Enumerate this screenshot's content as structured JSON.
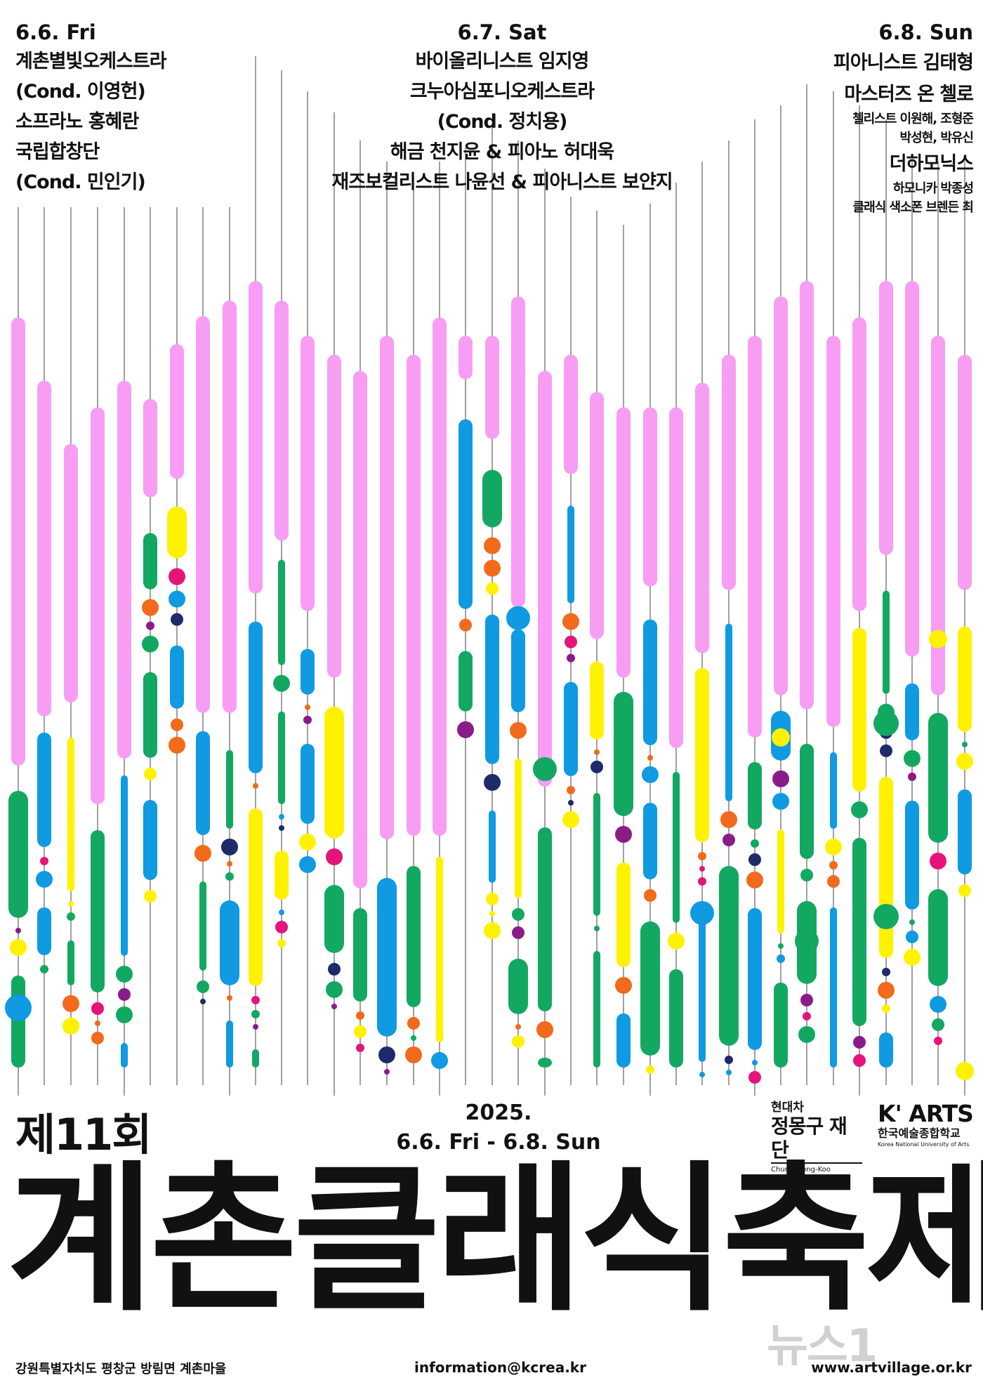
{
  "schedule": {
    "fri": {
      "date": "6.6. Fri",
      "lines": [
        "계촌별빛오케스트라",
        "(Cond. 이영헌)",
        "소프라노 홍혜란",
        "국립합창단",
        "(Cond. 민인기)"
      ]
    },
    "sat": {
      "date": "6.7. Sat",
      "lines": [
        "바이올리니스트 임지영",
        "크누아심포니오케스트라",
        "(Cond. 정치용)",
        "해금 천지윤 & 피아노 허대욱",
        "재즈보컬리스트 나윤선 & 피아니스트 보얀지"
      ]
    },
    "sun": {
      "date": "6.8. Sun",
      "line1": "피아니스트 김태형",
      "line2": "마스터즈 온 첼로",
      "line2_sub1": "첼리스트 이원해, 조형준",
      "line2_sub2": "박성현, 박유신",
      "line3": "더하모닉스",
      "line3_sub1": "하모니카 박종성",
      "line3_sub2": "클래식 색소폰 브렌든 최"
    }
  },
  "festival": {
    "edition": "제11회",
    "year": "2025.",
    "dates": "6.6. Fri - 6.8. Sun",
    "title": "계촌클래식축제"
  },
  "sponsors": {
    "hyundai_small": "현대차",
    "hyundai_main": "정몽구 재단",
    "hyundai_en": "Chung Mong-Koo Foundation",
    "karts_logo": "K' ARTS",
    "karts_ko": "한국예술종합학교",
    "karts_en": "Korea National University of Arts"
  },
  "footer": {
    "location": "강원특별자치도 평창군 방림면 계촌마을",
    "email": "information@kcrea.kr",
    "website": "www.artvillage.or.kr"
  },
  "watermark": "뉴스1",
  "colors": {
    "pink": "#f79ef4",
    "green": "#13a862",
    "blue": "#0f9ae2",
    "yellow": "#fff200",
    "magenta": "#e4147b",
    "purple": "#8a1c8a",
    "navy": "#1f2a6b",
    "orange": "#f26a1b",
    "line": "#777777"
  }
}
